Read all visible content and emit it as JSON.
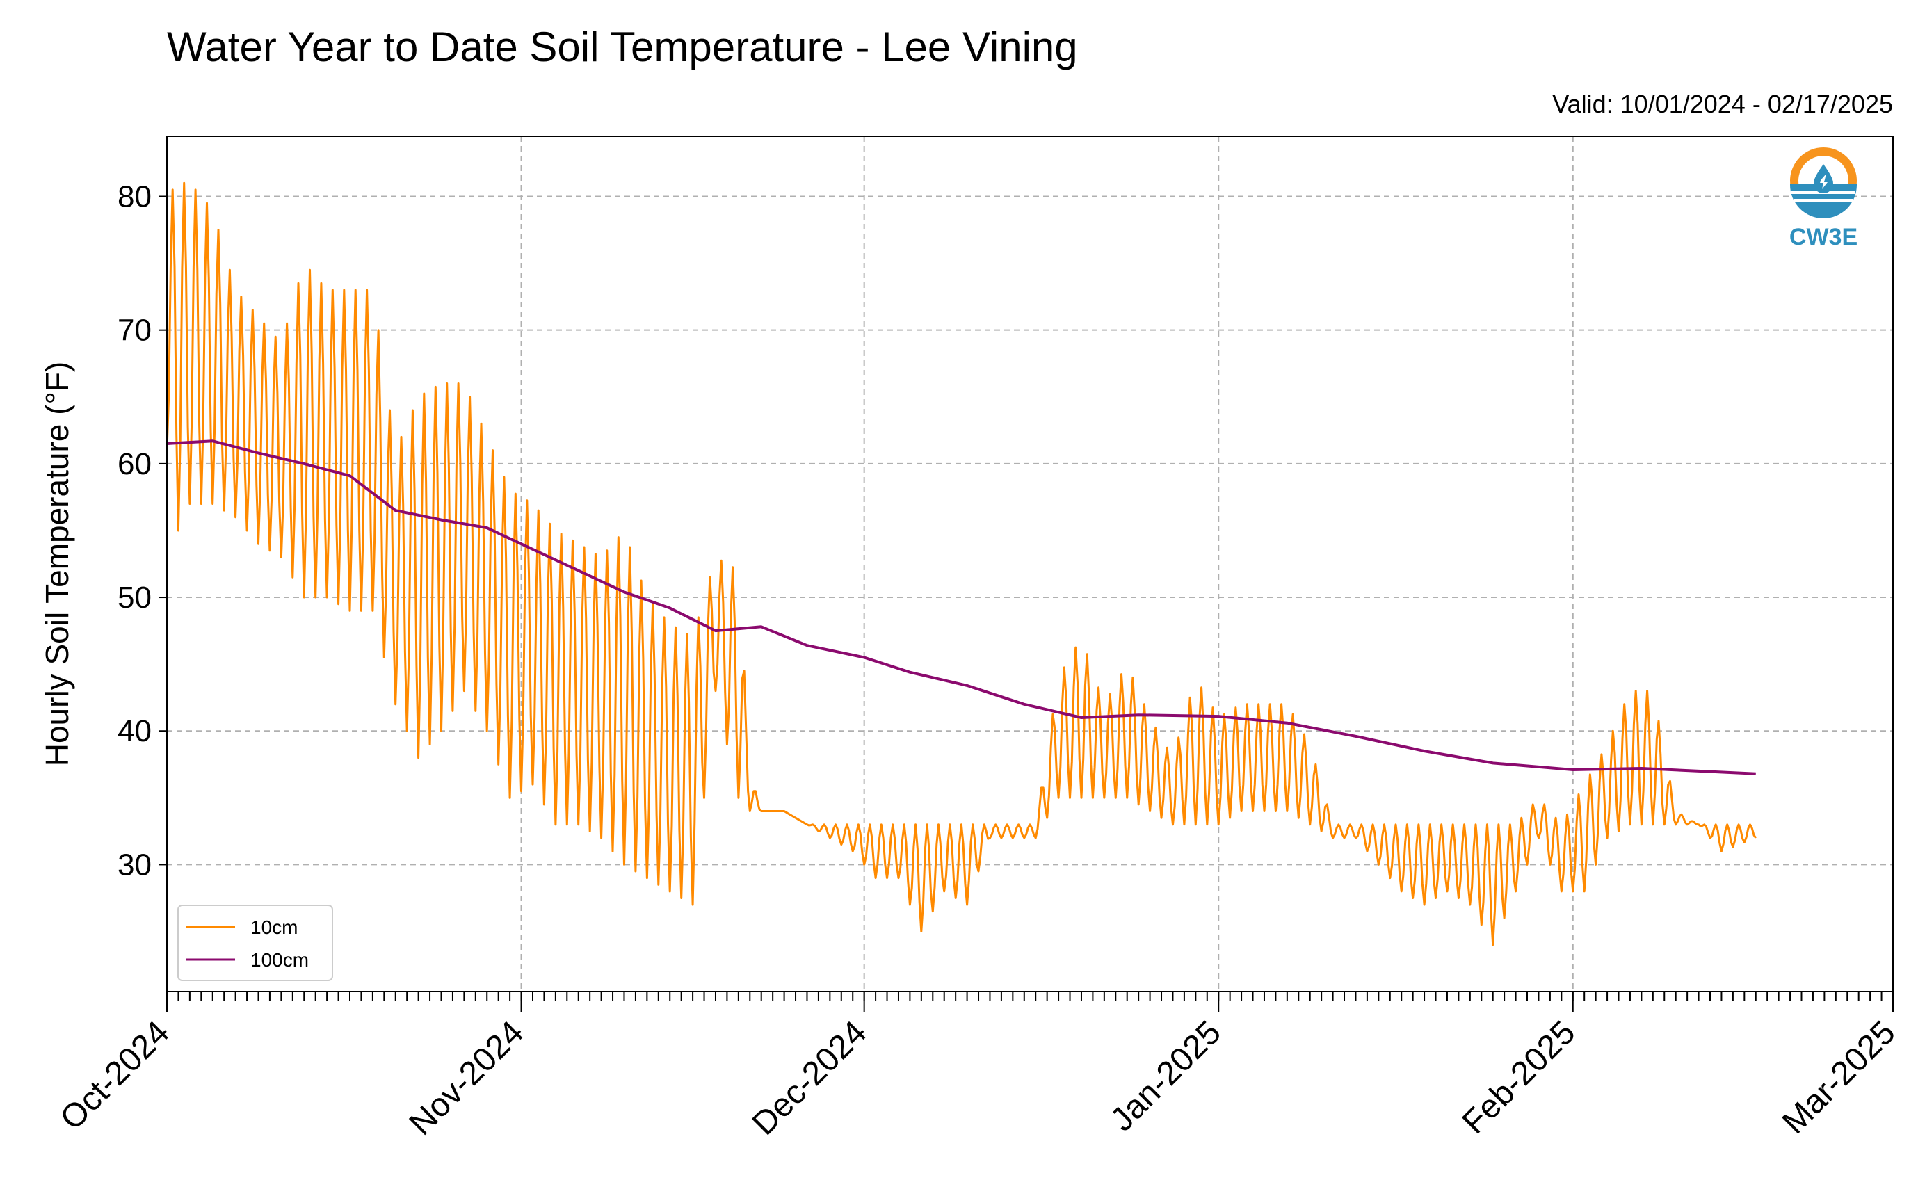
{
  "chart_data": {
    "type": "line",
    "title": "Water Year to Date Soil Temperature - Lee Vining",
    "subtitle": "Valid: 10/01/2024 - 02/17/2025",
    "xlabel": "",
    "ylabel": "Hourly Soil Temperature (°F)",
    "ylim": [
      20.5,
      84.5
    ],
    "xlim": [
      "2024-10-01",
      "2025-03-01"
    ],
    "y_ticks": [
      30,
      40,
      50,
      60,
      70,
      80
    ],
    "x_ticks": [
      {
        "date": "2024-10-01",
        "label": "Oct-2024"
      },
      {
        "date": "2024-11-01",
        "label": "Nov-2024"
      },
      {
        "date": "2024-12-01",
        "label": "Dec-2024"
      },
      {
        "date": "2025-01-01",
        "label": "Jan-2025"
      },
      {
        "date": "2025-02-01",
        "label": "Feb-2025"
      },
      {
        "date": "2025-03-01",
        "label": "Mar-2025"
      }
    ],
    "grid": true,
    "legend_position": "bottom-left",
    "series": [
      {
        "name": "10cm",
        "color": "#ff8a00",
        "x": [
          "2024-10-01",
          "2024-10-02",
          "2024-10-03",
          "2024-10-05",
          "2024-10-07",
          "2024-10-09",
          "2024-10-11",
          "2024-10-13",
          "2024-10-15",
          "2024-10-17",
          "2024-10-19",
          "2024-10-21",
          "2024-10-23",
          "2024-10-25",
          "2024-10-27",
          "2024-10-29",
          "2024-10-31",
          "2024-11-02",
          "2024-11-04",
          "2024-11-06",
          "2024-11-08",
          "2024-11-10",
          "2024-11-12",
          "2024-11-14",
          "2024-11-16",
          "2024-11-18",
          "2024-11-20",
          "2024-11-21",
          "2024-11-22",
          "2024-11-24",
          "2024-11-26",
          "2024-11-28",
          "2024-11-30",
          "2024-12-02",
          "2024-12-04",
          "2024-12-06",
          "2024-12-08",
          "2024-12-10",
          "2024-12-12",
          "2024-12-14",
          "2024-12-16",
          "2024-12-18",
          "2024-12-20",
          "2024-12-22",
          "2024-12-24",
          "2024-12-26",
          "2024-12-28",
          "2024-12-30",
          "2025-01-01",
          "2025-01-03",
          "2025-01-05",
          "2025-01-07",
          "2025-01-09",
          "2025-01-11",
          "2025-01-13",
          "2025-01-15",
          "2025-01-17",
          "2025-01-19",
          "2025-01-21",
          "2025-01-23",
          "2025-01-25",
          "2025-01-27",
          "2025-01-29",
          "2025-01-31",
          "2025-02-02",
          "2025-02-04",
          "2025-02-06",
          "2025-02-08",
          "2025-02-10",
          "2025-02-12",
          "2025-02-14",
          "2025-02-17"
        ],
        "y_min": [
          61,
          55,
          57,
          57,
          56,
          54,
          53,
          50,
          50,
          49,
          49,
          42,
          38,
          40,
          43,
          40,
          35,
          36,
          33,
          33,
          32,
          30,
          29,
          28,
          27,
          43,
          35,
          34,
          34,
          34,
          33,
          32,
          31,
          29,
          29,
          25,
          28,
          27,
          32,
          32,
          32,
          35,
          35,
          35,
          35,
          34,
          33,
          33,
          33,
          34,
          34,
          34,
          33,
          32,
          32,
          30,
          28,
          27,
          28,
          27,
          24,
          28,
          32,
          28,
          28,
          32,
          33,
          33,
          33,
          33,
          31,
          32
        ],
        "y_max": [
          80,
          81,
          81,
          79,
          73,
          71,
          69,
          75,
          73,
          73,
          73,
          61,
          65,
          66,
          66,
          62,
          58,
          57,
          55,
          54,
          53,
          55,
          50,
          48,
          47,
          53,
          52,
          37,
          34,
          34,
          33,
          33,
          33,
          33,
          33,
          33,
          33,
          33,
          33,
          33,
          33,
          44,
          47,
          42,
          45,
          41,
          38,
          44,
          41,
          42,
          42,
          42,
          39,
          33,
          33,
          33,
          33,
          33,
          33,
          33,
          33,
          33,
          35,
          33,
          36,
          39,
          43,
          43,
          34,
          33,
          33,
          33
        ]
      },
      {
        "name": "100cm",
        "color": "#8b0a6e",
        "x": [
          "2024-10-01",
          "2024-10-05",
          "2024-10-09",
          "2024-10-13",
          "2024-10-17",
          "2024-10-21",
          "2024-10-25",
          "2024-10-29",
          "2024-11-02",
          "2024-11-06",
          "2024-11-10",
          "2024-11-14",
          "2024-11-18",
          "2024-11-22",
          "2024-11-26",
          "2024-12-01",
          "2024-12-05",
          "2024-12-10",
          "2024-12-15",
          "2024-12-20",
          "2024-12-25",
          "2025-01-01",
          "2025-01-07",
          "2025-01-13",
          "2025-01-19",
          "2025-01-25",
          "2025-02-01",
          "2025-02-07",
          "2025-02-12",
          "2025-02-17"
        ],
        "y": [
          61.5,
          61.7,
          60.8,
          60.0,
          59.1,
          56.5,
          55.8,
          55.2,
          53.6,
          52.0,
          50.4,
          49.2,
          47.5,
          47.8,
          46.4,
          45.5,
          44.4,
          43.4,
          42.0,
          41.0,
          41.2,
          41.1,
          40.6,
          39.6,
          38.5,
          37.6,
          37.1,
          37.2,
          37.0,
          36.8
        ]
      }
    ]
  },
  "logo": {
    "text": "CW3E",
    "colors": {
      "orange": "#f7941d",
      "blue": "#2e8fbd"
    }
  }
}
